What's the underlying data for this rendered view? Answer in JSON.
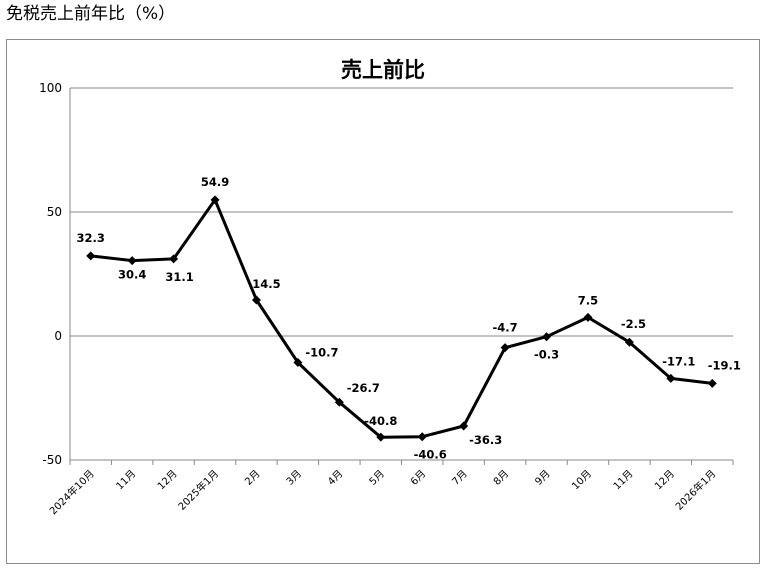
{
  "page_heading": "免税売上前年比（%）",
  "chart_data": {
    "type": "line",
    "title": "売上前比",
    "xlabel": "",
    "ylabel": "",
    "ylim": [
      -50,
      100
    ],
    "yticks": [
      100,
      50,
      0,
      -50
    ],
    "grid": true,
    "legend": "none",
    "categories": [
      "2024年10月",
      "11月",
      "12月",
      "2025年1月",
      "2月",
      "3月",
      "4月",
      "5月",
      "6月",
      "7月",
      "8月",
      "9月",
      "10月",
      "11月",
      "12月",
      "2026年1月"
    ],
    "series": [
      {
        "values": [
          32.3,
          30.4,
          31.1,
          54.9,
          14.5,
          -10.7,
          -26.7,
          -40.8,
          -40.6,
          -36.3,
          -4.7,
          -0.3,
          7.5,
          -2.5,
          -17.1,
          -19.1
        ],
        "color": "#000000"
      }
    ]
  }
}
